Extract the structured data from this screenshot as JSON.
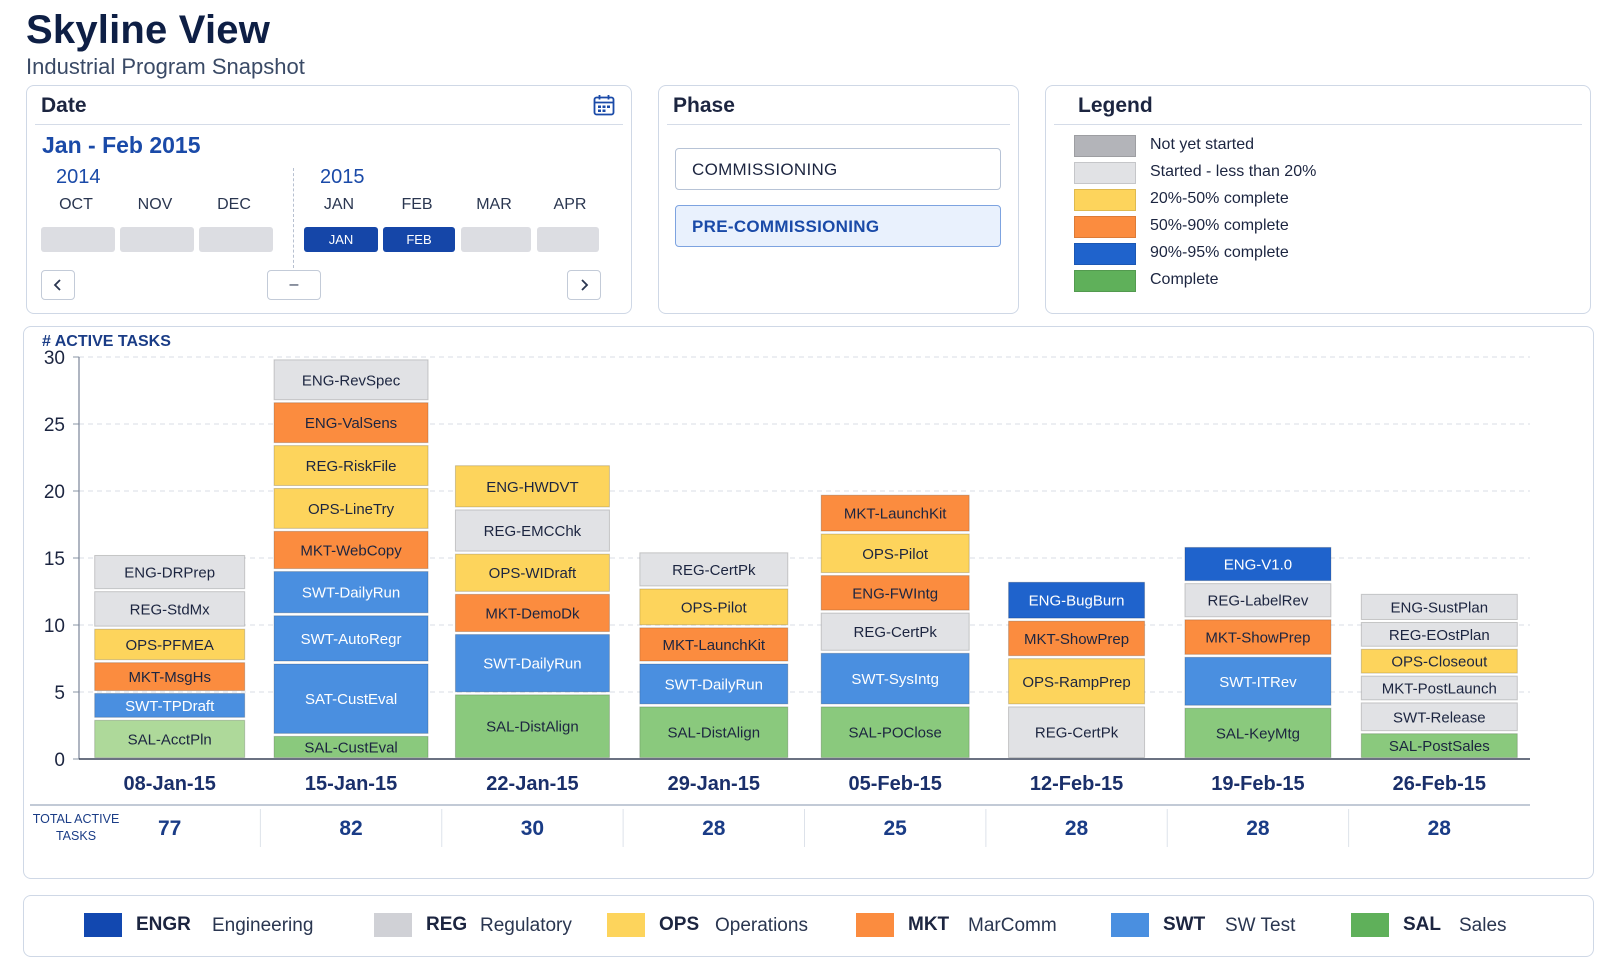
{
  "header": {
    "title": "Skyline View",
    "subtitle": "Industrial Program Snapshot"
  },
  "date_panel": {
    "heading": "Date",
    "calendar_icon": "calendar-icon",
    "range_label": "Jan - Feb 2015",
    "years": [
      "2014",
      "2015"
    ],
    "months": [
      {
        "label": "OCT",
        "box": "",
        "selected": false
      },
      {
        "label": "NOV",
        "box": "",
        "selected": false
      },
      {
        "label": "DEC",
        "box": "",
        "selected": false
      },
      {
        "label": "JAN",
        "box": "JAN",
        "selected": true
      },
      {
        "label": "FEB",
        "box": "FEB",
        "selected": true
      },
      {
        "label": "MAR",
        "box": "",
        "selected": false
      },
      {
        "label": "APR",
        "box": "",
        "selected": false
      }
    ],
    "prev_icon": "chevron-left-icon",
    "next_icon": "chevron-right-icon",
    "minus_label": "–"
  },
  "phase_panel": {
    "heading": "Phase",
    "options": [
      {
        "label": "COMMISSIONING",
        "selected": false
      },
      {
        "label": "PRE-COMMISSIONING",
        "selected": true
      }
    ]
  },
  "legend_panel": {
    "heading": "Legend",
    "items": [
      {
        "label": "Not yet started",
        "color": "#b3b4b9"
      },
      {
        "label": "Started - less than 20%",
        "color": "#e1e2e5"
      },
      {
        "label": "20%-50% complete",
        "color": "#fdd45c"
      },
      {
        "label": "50%-90% complete",
        "color": "#fb8c3f"
      },
      {
        "label": "90%-95% complete",
        "color": "#1f63cc"
      },
      {
        "label": "Complete",
        "color": "#5fb05a"
      }
    ]
  },
  "chart_data": {
    "type": "bar",
    "stacked": true,
    "ylabel": "# ACTIVE TASKS",
    "ylim": [
      0,
      30
    ],
    "yticks": [
      0,
      5,
      10,
      15,
      20,
      25,
      30
    ],
    "grid": true,
    "categories": [
      "08-Jan-15",
      "15-Jan-15",
      "22-Jan-15",
      "29-Jan-15",
      "05-Feb-15",
      "12-Feb-15",
      "19-Feb-15",
      "26-Feb-15"
    ],
    "stacks": [
      [
        {
          "label": "SAL-AcctPln",
          "value": 3.0,
          "color": "#aed99a"
        },
        {
          "label": "SWT-TPDraft",
          "value": 2.0,
          "color": "#4a8fe0"
        },
        {
          "label": "MKT-MsgHs",
          "value": 2.3,
          "color": "#fb8c3f"
        },
        {
          "label": "OPS-PFMEA",
          "value": 2.5,
          "color": "#fdd45c"
        },
        {
          "label": "REG-StdMx",
          "value": 2.8,
          "color": "#e1e2e5"
        },
        {
          "label": "ENG-DRPrep",
          "value": 2.7,
          "color": "#e1e2e5"
        }
      ],
      [
        {
          "label": "SAL-CustEval",
          "value": 1.8,
          "color": "#8ac97d"
        },
        {
          "label": "SAT-CustEval",
          "value": 5.4,
          "color": "#4a8fe0"
        },
        {
          "label": "SWT-AutoRegr",
          "value": 3.6,
          "color": "#4a8fe0"
        },
        {
          "label": "SWT-DailyRun",
          "value": 3.3,
          "color": "#4a8fe0"
        },
        {
          "label": "MKT-WebCopy",
          "value": 3.0,
          "color": "#fb8c3f"
        },
        {
          "label": "OPS-LineTry",
          "value": 3.2,
          "color": "#fdd45c"
        },
        {
          "label": "REG-RiskFile",
          "value": 3.2,
          "color": "#fdd45c"
        },
        {
          "label": "ENG-ValSens",
          "value": 3.2,
          "color": "#fb8c3f"
        },
        {
          "label": "ENG-RevSpec",
          "value": 3.2,
          "color": "#e1e2e5"
        }
      ],
      [
        {
          "label": "SAL-DistAlign",
          "value": 4.9,
          "color": "#8ac97d"
        },
        {
          "label": "SWT-DailyRun",
          "value": 4.5,
          "color": "#4a8fe0"
        },
        {
          "label": "MKT-DemoDk",
          "value": 3.0,
          "color": "#fb8c3f"
        },
        {
          "label": "OPS-WIDraft",
          "value": 3.0,
          "color": "#fdd45c"
        },
        {
          "label": "REG-EMCChk",
          "value": 3.3,
          "color": "#e1e2e5"
        },
        {
          "label": "ENG-HWDVT",
          "value": 3.3,
          "color": "#fdd45c"
        }
      ],
      [
        {
          "label": "SAL-DistAlign",
          "value": 4.0,
          "color": "#8ac97d"
        },
        {
          "label": "SWT-DailyRun",
          "value": 3.2,
          "color": "#4a8fe0"
        },
        {
          "label": "MKT-LaunchKit",
          "value": 2.7,
          "color": "#fb8c3f"
        },
        {
          "label": "OPS-Pilot",
          "value": 2.9,
          "color": "#fdd45c"
        },
        {
          "label": "REG-CertPk",
          "value": 2.7,
          "color": "#e1e2e5"
        }
      ],
      [
        {
          "label": "SAL-POClose",
          "value": 4.0,
          "color": "#8ac97d"
        },
        {
          "label": "SWT-SysIntg",
          "value": 4.0,
          "color": "#4a8fe0"
        },
        {
          "label": "REG-CertPk",
          "value": 3.0,
          "color": "#e1e2e5"
        },
        {
          "label": "ENG-FWIntg",
          "value": 2.8,
          "color": "#fb8c3f"
        },
        {
          "label": "OPS-Pilot",
          "value": 3.1,
          "color": "#fdd45c"
        },
        {
          "label": "MKT-LaunchKit",
          "value": 2.9,
          "color": "#fb8c3f"
        }
      ],
      [
        {
          "label": "REG-CertPk",
          "value": 4.0,
          "color": "#e1e2e5"
        },
        {
          "label": "OPS-RampPrep",
          "value": 3.6,
          "color": "#fdd45c"
        },
        {
          "label": "MKT-ShowPrep",
          "value": 2.8,
          "color": "#fb8c3f"
        },
        {
          "label": "ENG-BugBurn",
          "value": 2.9,
          "color": "#1f63cc"
        }
      ],
      [
        {
          "label": "SAL-KeyMtg",
          "value": 3.9,
          "color": "#8ac97d"
        },
        {
          "label": "SWT-ITRev",
          "value": 3.8,
          "color": "#4a8fe0"
        },
        {
          "label": "MKT-ShowPrep",
          "value": 2.8,
          "color": "#fb8c3f"
        },
        {
          "label": "REG-LabelRev",
          "value": 2.7,
          "color": "#e1e2e5"
        },
        {
          "label": "ENG-V1.0",
          "value": 2.7,
          "color": "#1f63cc"
        }
      ],
      [
        {
          "label": "SAL-PostSales",
          "value": 2.0,
          "color": "#8ac97d"
        },
        {
          "label": "SWT-Release",
          "value": 2.3,
          "color": "#e1e2e5"
        },
        {
          "label": "MKT-PostLaunch",
          "value": 2.0,
          "color": "#e1e2e5"
        },
        {
          "label": "OPS-Closeout",
          "value": 2.0,
          "color": "#fdd45c"
        },
        {
          "label": "REG-EOstPlan",
          "value": 2.0,
          "color": "#e1e2e5"
        },
        {
          "label": "ENG-SustPlan",
          "value": 2.1,
          "color": "#e1e2e5"
        }
      ]
    ],
    "totals_label": "TOTAL ACTIVE TASKS",
    "totals": [
      77,
      82,
      30,
      28,
      25,
      28,
      28,
      28
    ]
  },
  "dept_legend": [
    {
      "code": "ENGR",
      "name": "Engineering",
      "color": "#1248b0"
    },
    {
      "code": "REG",
      "name": "Regulatory",
      "color": "#d0d1d6"
    },
    {
      "code": "OPS",
      "name": "Operations",
      "color": "#fdd45c"
    },
    {
      "code": "MKT",
      "name": "MarComm",
      "color": "#fb8c3f"
    },
    {
      "code": "SWT",
      "name": "SW Test",
      "color": "#4a8fe0"
    },
    {
      "code": "SAL",
      "name": "Sales",
      "color": "#5fb05a"
    }
  ]
}
